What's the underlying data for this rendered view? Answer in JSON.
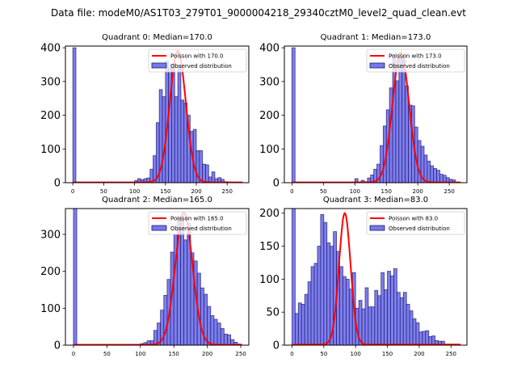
{
  "figure": {
    "suptitle": "Data file: modeM0/AS1T03_279T01_9000004218_29340cztM0_level2_quad_clean.evt"
  },
  "chart_data": [
    {
      "type": "bar",
      "title": "Quadrant 0: Median=170.0",
      "xlim": [
        -12,
        285
      ],
      "ylim": [
        0,
        405
      ],
      "xticks": [
        0,
        50,
        100,
        150,
        200,
        250
      ],
      "yticks": [
        0,
        100,
        200,
        300,
        400
      ],
      "bin_width": 5,
      "bins_x": [
        0,
        100,
        105,
        110,
        115,
        120,
        125,
        130,
        135,
        140,
        145,
        150,
        155,
        160,
        165,
        170,
        175,
        180,
        185,
        190,
        195,
        200,
        205,
        210,
        215,
        220,
        225,
        230,
        235,
        240,
        245,
        250,
        255,
        260,
        265,
        270
      ],
      "values": [
        400,
        6,
        12,
        9,
        12,
        14,
        40,
        80,
        178,
        276,
        255,
        360,
        340,
        350,
        255,
        347,
        245,
        236,
        200,
        152,
        158,
        95,
        95,
        55,
        53,
        17,
        32,
        12,
        15,
        10,
        3,
        2,
        1,
        1,
        1,
        0
      ],
      "poisson_mean": 170.0,
      "poisson_peak": 390,
      "legend": [
        "Poisson with 170.0",
        "Observed distribution"
      ],
      "legend_position": "upper right"
    },
    {
      "type": "bar",
      "title": "Quadrant 1: Median=173.0",
      "xlim": [
        -12,
        278
      ],
      "ylim": [
        0,
        405
      ],
      "xticks": [
        0,
        50,
        100,
        150,
        200,
        250
      ],
      "yticks": [
        0,
        100,
        200,
        300,
        400
      ],
      "bin_width": 5,
      "bins_x": [
        0,
        95,
        100,
        105,
        110,
        115,
        120,
        125,
        130,
        135,
        140,
        145,
        150,
        155,
        160,
        165,
        170,
        175,
        180,
        185,
        190,
        195,
        200,
        205,
        210,
        215,
        220,
        225,
        230,
        235,
        240,
        245,
        250,
        255,
        260
      ],
      "values": [
        400,
        2,
        12,
        2,
        7,
        3,
        14,
        23,
        40,
        55,
        110,
        168,
        216,
        281,
        380,
        302,
        370,
        362,
        287,
        230,
        228,
        165,
        125,
        108,
        82,
        64,
        50,
        42,
        37,
        25,
        22,
        15,
        10,
        8,
        1
      ],
      "poisson_mean": 173.0,
      "poisson_peak": 385,
      "legend": [
        "Poisson with 173.0",
        "Observed distribution"
      ],
      "legend_position": "upper right"
    },
    {
      "type": "bar",
      "title": "Quadrant 2: Median=165.0",
      "xlim": [
        -12,
        262
      ],
      "ylim": [
        0,
        370
      ],
      "xticks": [
        0,
        50,
        100,
        150,
        200,
        250
      ],
      "yticks": [
        0,
        100,
        200,
        300
      ],
      "bin_width": 5,
      "bins_x": [
        0,
        100,
        105,
        110,
        115,
        120,
        125,
        130,
        135,
        140,
        145,
        150,
        155,
        160,
        165,
        170,
        175,
        180,
        185,
        190,
        195,
        200,
        205,
        210,
        215,
        220,
        225,
        230,
        235,
        240,
        245
      ],
      "values": [
        370,
        4,
        7,
        12,
        12,
        40,
        60,
        95,
        135,
        178,
        252,
        300,
        345,
        340,
        285,
        330,
        250,
        228,
        195,
        155,
        138,
        105,
        80,
        70,
        60,
        45,
        30,
        28,
        15,
        8,
        3
      ],
      "poisson_mean": 165.0,
      "poisson_peak": 358,
      "legend": [
        "Poisson with 165.0",
        "Observed distribution"
      ],
      "legend_position": "upper right"
    },
    {
      "type": "bar",
      "title": "Quadrant 3: Median=83.0",
      "xlim": [
        -12,
        275
      ],
      "ylim": [
        0,
        207
      ],
      "xticks": [
        0,
        50,
        100,
        150,
        200,
        250
      ],
      "yticks": [
        0,
        50,
        100,
        150,
        200
      ],
      "bin_width": 5,
      "bins_x": [
        0,
        5,
        10,
        15,
        20,
        25,
        30,
        35,
        40,
        45,
        50,
        55,
        60,
        65,
        70,
        75,
        80,
        85,
        90,
        95,
        100,
        105,
        110,
        115,
        120,
        125,
        130,
        135,
        140,
        145,
        150,
        155,
        160,
        165,
        170,
        175,
        180,
        185,
        190,
        195,
        200,
        205,
        210,
        215,
        220,
        225,
        230,
        235,
        240,
        245,
        250,
        255
      ],
      "values": [
        207,
        48,
        64,
        62,
        77,
        96,
        119,
        124,
        150,
        198,
        186,
        155,
        150,
        172,
        142,
        119,
        104,
        100,
        85,
        110,
        56,
        68,
        55,
        87,
        58,
        58,
        83,
        75,
        110,
        84,
        112,
        105,
        116,
        80,
        72,
        80,
        62,
        52,
        40,
        34,
        20,
        21,
        22,
        13,
        14,
        7,
        6,
        6,
        1,
        1,
        1,
        1
      ],
      "poisson_mean": 83.0,
      "poisson_peak": 199,
      "legend": [
        "Poisson with 83.0",
        "Observed distribution"
      ],
      "legend_position": "upper right"
    }
  ],
  "colors": {
    "bar_fill": "#7777ee",
    "bar_edge": "#1a1a66",
    "poisson_line": "#ff0000"
  }
}
